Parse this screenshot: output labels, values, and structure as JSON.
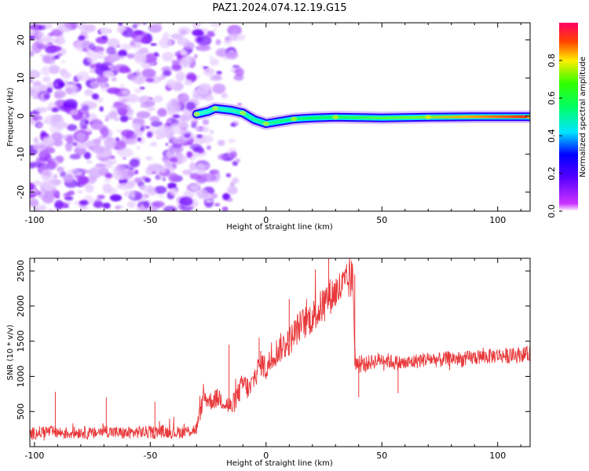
{
  "title": "PAZ1.2024.074.12.19.G15",
  "chart_data": [
    {
      "type": "heatmap",
      "xlabel": "Height of straight line (km)",
      "ylabel": "Frequency (Hz)",
      "xlim": [
        -102,
        114
      ],
      "ylim": [
        -25,
        24.5
      ],
      "xticks": [
        -100,
        -50,
        0,
        50,
        100
      ],
      "yticks": [
        -20,
        -10,
        0,
        10,
        20
      ],
      "colorbar": {
        "label": "Normalized spectral amplitude",
        "range": [
          0,
          1
        ],
        "ticks": [
          "0.0",
          "0.2",
          "0.4",
          "0.6",
          "0.8"
        ],
        "colormap": "gist_rainbow_r-like (violet to red)"
      },
      "regions": [
        {
          "name": "noise",
          "x_range": [
            -102,
            -11
          ],
          "freq_range": [
            -25,
            24.5
          ],
          "amplitude": "low (0.0-0.2)"
        },
        {
          "name": "signal",
          "x_range": [
            -30,
            114
          ],
          "freq_center": 0,
          "amplitude_start": 0.3,
          "amplitude_end": 0.9
        }
      ],
      "signal_track": [
        {
          "x": -30,
          "f": 0.5
        },
        {
          "x": -25,
          "f": 1.2
        },
        {
          "x": -22,
          "f": 2.0
        },
        {
          "x": -15,
          "f": 1.5
        },
        {
          "x": -10,
          "f": 0.8
        },
        {
          "x": -5,
          "f": -1.0
        },
        {
          "x": 0,
          "f": -2.0
        },
        {
          "x": 5,
          "f": -1.5
        },
        {
          "x": 12,
          "f": -0.8
        },
        {
          "x": 20,
          "f": -0.5
        },
        {
          "x": 30,
          "f": -0.3
        },
        {
          "x": 50,
          "f": -0.5
        },
        {
          "x": 70,
          "f": -0.3
        },
        {
          "x": 90,
          "f": -0.2
        },
        {
          "x": 114,
          "f": -0.2
        }
      ]
    },
    {
      "type": "line",
      "xlabel": "Height of straight line (km)",
      "ylabel": "SNR (10 * v/v)",
      "xlim": [
        -102,
        114
      ],
      "ylim": [
        0,
        2680
      ],
      "xticks": [
        -100,
        -50,
        0,
        50,
        100
      ],
      "yticks": [
        500,
        1000,
        1500,
        2000,
        2500
      ],
      "color": "#e8383a",
      "series": [
        {
          "x": [
            -102,
            -95,
            -90,
            -85,
            -80,
            -75,
            -70,
            -65,
            -60,
            -55,
            -50,
            -45,
            -40,
            -35,
            -30,
            -27,
            -24,
            -20,
            -17,
            -15,
            -12,
            -10,
            -7,
            -5,
            -2,
            0,
            3,
            6,
            10,
            14,
            18,
            22,
            26,
            30,
            34,
            37.5,
            38.5,
            40,
            45,
            50,
            55,
            60,
            65,
            70,
            75,
            80,
            85,
            90,
            95,
            100,
            105,
            110,
            114
          ],
          "values": [
            180,
            220,
            200,
            190,
            210,
            180,
            230,
            200,
            190,
            210,
            200,
            220,
            200,
            210,
            250,
            700,
            650,
            700,
            600,
            550,
            750,
            900,
            800,
            1000,
            1200,
            1100,
            1300,
            1400,
            1500,
            1700,
            1800,
            1900,
            2100,
            2200,
            2300,
            2400,
            1200,
            1150,
            1200,
            1250,
            1200,
            1180,
            1220,
            1250,
            1230,
            1260,
            1240,
            1270,
            1280,
            1300,
            1290,
            1310,
            1320
          ]
        }
      ],
      "spikes": [
        {
          "x": -91,
          "value": 780
        },
        {
          "x": -69,
          "value": 700
        },
        {
          "x": -48,
          "value": 640
        },
        {
          "x": -16,
          "value": 1450
        },
        {
          "x": -3,
          "value": 1550
        },
        {
          "x": 10,
          "value": 2100
        },
        {
          "x": 27,
          "value": 2680
        },
        {
          "x": 40,
          "value": 700
        },
        {
          "x": 57,
          "value": 760
        }
      ]
    }
  ]
}
